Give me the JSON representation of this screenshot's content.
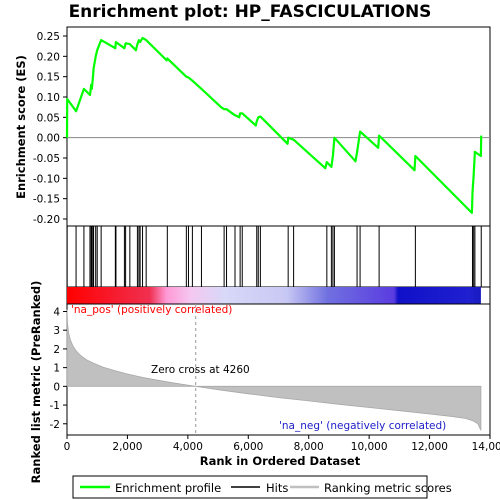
{
  "chart_data": [
    {
      "type": "line",
      "title": "Enrichment plot: HP_FASCICULATIONS",
      "ylabel": "Enrichment score (ES)",
      "xlim": [
        0,
        14000
      ],
      "ylim": [
        -0.2,
        0.25
      ],
      "yticks": [
        "0.25",
        "0.20",
        "0.15",
        "0.10",
        "0.05",
        "0.00",
        "-0.05",
        "-0.10",
        "-0.15",
        "-0.20"
      ],
      "ytick_values": [
        0.25,
        0.2,
        0.15,
        0.1,
        0.05,
        0.0,
        -0.05,
        -0.1,
        -0.15,
        -0.2
      ],
      "series": [
        {
          "name": "Enrichment profile",
          "color": "#00ff00",
          "x": [
            0,
            5,
            300,
            560,
            760,
            800,
            820,
            860,
            880,
            950,
            1000,
            1130,
            1600,
            1620,
            1900,
            1940,
            2080,
            2280,
            2330,
            2380,
            2420,
            2500,
            2620,
            3300,
            3320,
            3950,
            4020,
            4150,
            4450,
            5100,
            5200,
            5280,
            5560,
            5700,
            5730,
            5800,
            6250,
            6280,
            6330,
            6400,
            7300,
            7320,
            7500,
            8550,
            8600,
            8750,
            8800,
            8850,
            9550,
            9600,
            9700,
            10300,
            10330,
            11500,
            11530,
            13400,
            13420,
            13460,
            13500,
            13700,
            13710
          ],
          "y": [
            0.0,
            0.095,
            0.065,
            0.12,
            0.105,
            0.13,
            0.12,
            0.15,
            0.17,
            0.2,
            0.215,
            0.24,
            0.22,
            0.235,
            0.22,
            0.232,
            0.23,
            0.215,
            0.23,
            0.24,
            0.235,
            0.245,
            0.24,
            0.19,
            0.195,
            0.15,
            0.148,
            0.14,
            0.12,
            0.075,
            0.07,
            0.07,
            0.055,
            0.05,
            0.06,
            0.06,
            0.03,
            0.04,
            0.05,
            0.052,
            -0.015,
            0.0,
            -0.005,
            -0.075,
            -0.06,
            -0.072,
            -0.045,
            0.0,
            -0.058,
            -0.035,
            0.015,
            -0.025,
            0.005,
            -0.08,
            -0.045,
            -0.185,
            -0.135,
            -0.09,
            -0.035,
            -0.045,
            0.005
          ]
        }
      ]
    },
    {
      "type": "hits",
      "series": [
        {
          "name": "Hits",
          "color": "#000000",
          "x": [
            5,
            300,
            560,
            760,
            800,
            820,
            860,
            880,
            950,
            1000,
            1130,
            1600,
            1620,
            1900,
            1940,
            2080,
            2330,
            2380,
            2420,
            2500,
            2620,
            3320,
            3950,
            4020,
            4150,
            4450,
            5200,
            5280,
            5560,
            5730,
            5800,
            6280,
            6330,
            6400,
            7320,
            7500,
            8600,
            8750,
            8800,
            8850,
            9600,
            9700,
            10330,
            11530,
            13420,
            13460,
            13500,
            13710
          ]
        }
      ]
    },
    {
      "type": "heatmap",
      "gradient": [
        {
          "pos": 0.0,
          "color": "#ff0000"
        },
        {
          "pos": 0.2,
          "color": "#f03050"
        },
        {
          "pos": 0.24,
          "color": "#ff99d6"
        },
        {
          "pos": 0.3,
          "color": "#f4c8f0"
        },
        {
          "pos": 0.38,
          "color": "#d8d8f8"
        },
        {
          "pos": 0.53,
          "color": "#c8c8f4"
        },
        {
          "pos": 0.63,
          "color": "#7070e0"
        },
        {
          "pos": 0.79,
          "color": "#5a3ce0"
        },
        {
          "pos": 0.8,
          "color": "#1010c8"
        },
        {
          "pos": 0.97,
          "color": "#2020d0"
        },
        {
          "pos": 1.0,
          "color": "#1a1ac0"
        }
      ],
      "labels": {
        "positive": "'na_pos' (positively correlated)",
        "negative": "'na_neg' (negatively correlated)"
      },
      "positive_color": "#ff0000",
      "negative_color": "#1c1cc8"
    },
    {
      "type": "area",
      "xlabel": "Rank in Ordered Dataset",
      "ylabel": "Ranked list metric (PreRanked)",
      "xlim": [
        0,
        14000
      ],
      "ylim": [
        -2.6,
        4.4
      ],
      "xticks": [
        "0",
        "2,000",
        "4,000",
        "6,000",
        "8,000",
        "10,000",
        "12,000",
        "14,000"
      ],
      "xtick_values": [
        0,
        2000,
        4000,
        6000,
        8000,
        10000,
        12000,
        14000
      ],
      "yticks": [
        "4",
        "3",
        "2",
        "1",
        "0",
        "-1",
        "-2"
      ],
      "ytick_values": [
        4,
        3,
        2,
        1,
        0,
        -1,
        -2
      ],
      "zero_cross_label": "Zero cross at 4260",
      "zero_cross": 4260,
      "series": [
        {
          "name": "Ranking metric scores",
          "color": "#c0c0c0",
          "x": [
            0,
            20,
            60,
            120,
            200,
            300,
            450,
            650,
            900,
            1200,
            1600,
            2000,
            2500,
            3000,
            3500,
            4000,
            4260,
            5000,
            6000,
            7000,
            8000,
            9000,
            10000,
            11000,
            12000,
            12800,
            13200,
            13450,
            13600,
            13700
          ],
          "values": [
            4.1,
            3.3,
            2.8,
            2.45,
            2.15,
            1.9,
            1.65,
            1.42,
            1.22,
            1.02,
            0.83,
            0.66,
            0.48,
            0.33,
            0.19,
            0.06,
            0.0,
            -0.18,
            -0.4,
            -0.6,
            -0.78,
            -0.96,
            -1.13,
            -1.3,
            -1.48,
            -1.62,
            -1.72,
            -1.85,
            -2.0,
            -2.35
          ]
        }
      ]
    }
  ],
  "legend": {
    "items": [
      {
        "label": "Enrichment profile",
        "color": "#00ff00"
      },
      {
        "label": "Hits",
        "color": "#000000"
      },
      {
        "label": "Ranking metric scores",
        "color": "#c0c0c0"
      }
    ]
  }
}
